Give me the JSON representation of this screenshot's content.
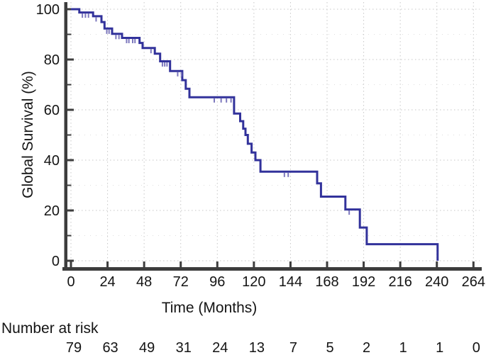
{
  "chart_data": {
    "type": "line",
    "variant": "kaplan_meier_step",
    "title": "",
    "xlabel": "Time (Months)",
    "ylabel": "Global Survival (%)",
    "xlim": [
      0,
      264
    ],
    "ylim": [
      0,
      100
    ],
    "x_ticks": [
      0,
      24,
      48,
      72,
      96,
      120,
      144,
      168,
      192,
      216,
      240,
      264
    ],
    "y_ticks": [
      0,
      20,
      40,
      60,
      80,
      100
    ],
    "y_minor_ticks": [
      10,
      30,
      50,
      70,
      90
    ],
    "grid": "dotted",
    "legend_position": "none",
    "series": [
      {
        "name": "Global Survival",
        "color": "#32329b",
        "censor_color": "#7d78bd",
        "steps": [
          [
            0,
            100
          ],
          [
            5.5,
            98.7
          ],
          [
            14.5,
            97.2
          ],
          [
            20,
            94.9
          ],
          [
            22,
            92.3
          ],
          [
            27,
            90.2
          ],
          [
            33.5,
            88.6
          ],
          [
            45,
            86.6
          ],
          [
            47,
            84.6
          ],
          [
            55,
            82.3
          ],
          [
            58.5,
            79.3
          ],
          [
            65,
            75.4
          ],
          [
            73,
            71.8
          ],
          [
            75.3,
            68.4
          ],
          [
            77.7,
            65
          ],
          [
            107,
            58.5
          ],
          [
            111,
            55.5
          ],
          [
            113,
            52.5
          ],
          [
            114.5,
            50
          ],
          [
            116,
            46.5
          ],
          [
            118.5,
            43
          ],
          [
            121,
            40
          ],
          [
            124.3,
            35.4
          ],
          [
            161.5,
            30.8
          ],
          [
            164,
            25.5
          ],
          [
            180,
            20.4
          ],
          [
            189.5,
            13.2
          ],
          [
            194,
            6.6
          ],
          [
            240.5,
            0
          ]
        ],
        "censor_marks": [
          [
            7.5,
            98.7
          ],
          [
            9.5,
            98.7
          ],
          [
            11.5,
            98.7
          ],
          [
            16.5,
            97.2
          ],
          [
            23.5,
            92.3
          ],
          [
            25,
            92.3
          ],
          [
            29.5,
            90.2
          ],
          [
            31.5,
            90.2
          ],
          [
            36.5,
            88.6
          ],
          [
            38,
            88.6
          ],
          [
            40.5,
            88.6
          ],
          [
            42,
            88.6
          ],
          [
            52.5,
            84.6
          ],
          [
            60,
            79.3
          ],
          [
            61.5,
            79.3
          ],
          [
            63,
            79.3
          ],
          [
            70,
            75.4
          ],
          [
            72.5,
            75.4
          ],
          [
            94,
            65
          ],
          [
            98.5,
            65
          ],
          [
            102,
            65
          ],
          [
            105,
            65
          ],
          [
            140,
            35.4
          ],
          [
            142.5,
            35.4
          ],
          [
            182.5,
            20.4
          ]
        ]
      }
    ]
  },
  "risk_table": {
    "label": "Number at risk",
    "label_color": "#2b2b9e",
    "times": [
      0,
      24,
      48,
      72,
      96,
      120,
      144,
      168,
      192,
      216,
      240,
      264
    ],
    "counts": [
      "79",
      "63",
      "49",
      "31",
      "24",
      "13",
      "7",
      "5",
      "2",
      "1",
      "1",
      "0"
    ]
  },
  "style_colors": {
    "axis": "#3d3d3d",
    "grid_major": "#c7c7c7",
    "grid_minor": "#dedede",
    "text": "#141414"
  }
}
